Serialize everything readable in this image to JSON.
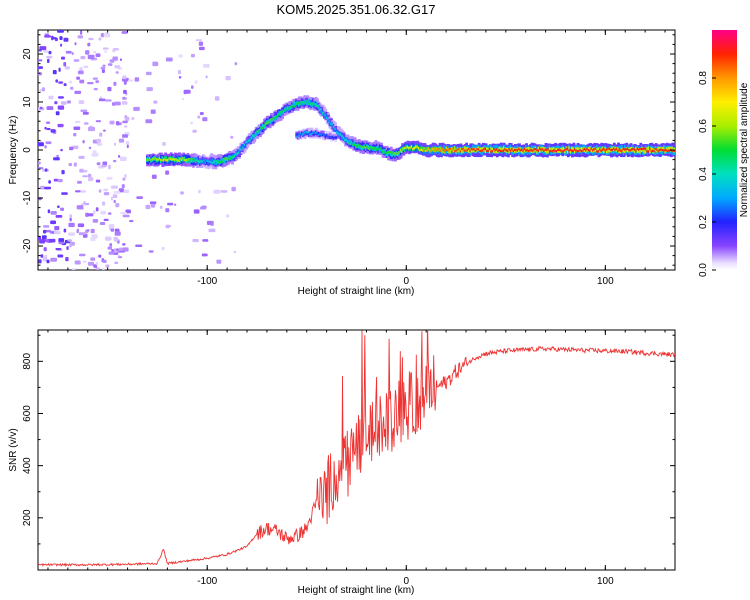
{
  "title": "KOM5.2025.351.06.32.G17",
  "chart_data": [
    {
      "type": "heatmap",
      "name": "spectrogram",
      "xlabel": "Height of straight line (km)",
      "ylabel": "Frequency (Hz)",
      "xlim": [
        -185,
        135
      ],
      "ylim": [
        -25,
        25
      ],
      "xticks": [
        -100,
        0,
        100
      ],
      "yticks": [
        -20,
        -10,
        0,
        10,
        20
      ],
      "xtick_labels": [
        "-100",
        "0",
        "100"
      ],
      "ytick_labels": [
        "-20",
        "-10",
        "0",
        "10",
        "20"
      ],
      "colorbar": {
        "label": "Normalized spectral amplitude",
        "range": [
          0,
          1
        ],
        "ticks": [
          0,
          0.2,
          0.4,
          0.6,
          0.8
        ],
        "tick_labels": [
          "0.0",
          "0.2",
          "0.4",
          "0.6",
          "0.8"
        ]
      },
      "ridge": {
        "x": [
          -130,
          -120,
          -110,
          -100,
          -95,
          -90,
          -85,
          -80,
          -75,
          -70,
          -65,
          -60,
          -55,
          -50,
          -45,
          -40,
          -35,
          -30,
          -25,
          -20,
          -15,
          -10,
          -5,
          0,
          5,
          10,
          15,
          20,
          40,
          60,
          80,
          100,
          120,
          135
        ],
        "y": [
          -2.0,
          -2.0,
          -2.0,
          -2.5,
          -2.5,
          -2.0,
          -1.0,
          1.5,
          3.5,
          5.5,
          7.0,
          8.5,
          9.5,
          10.0,
          9.5,
          7.0,
          4.0,
          2.0,
          1.0,
          0.5,
          0.5,
          -0.5,
          -1.0,
          0.5,
          0.5,
          0,
          0,
          0,
          0,
          0,
          0,
          0,
          0,
          0
        ],
        "amp": [
          0.55,
          0.65,
          0.6,
          0.3,
          0.45,
          0.55,
          0.4,
          0.35,
          0.45,
          0.55,
          0.5,
          0.45,
          0.5,
          0.45,
          0.45,
          0.35,
          0.35,
          0.4,
          0.5,
          0.55,
          0.5,
          0.5,
          0.55,
          0.65,
          0.7,
          0.75,
          0.8,
          0.85,
          0.9,
          0.9,
          0.92,
          0.9,
          0.9,
          0.9
        ]
      },
      "secondary_ridge": {
        "x": [
          -55,
          -50,
          -45,
          -40,
          -35
        ],
        "y": [
          3.0,
          3.5,
          3.5,
          3.0,
          2.5
        ],
        "amp": [
          0.3,
          0.35,
          0.3,
          0.25,
          0.2
        ]
      }
    },
    {
      "type": "line",
      "name": "snr",
      "xlabel": "Height of straight line (km)",
      "ylabel": "SNR (v/v)",
      "xlim": [
        -185,
        135
      ],
      "ylim": [
        0,
        920
      ],
      "xticks": [
        -100,
        0,
        100
      ],
      "yticks": [
        200,
        400,
        600,
        800
      ],
      "xtick_labels": [
        "-100",
        "0",
        "100"
      ],
      "ytick_labels": [
        "200",
        "400",
        "600",
        "800"
      ],
      "color": "#ee3333",
      "series": [
        {
          "name": "SNR",
          "x": [
            -185,
            -160,
            -140,
            -125,
            -122,
            -120,
            -110,
            -100,
            -90,
            -80,
            -75,
            -70,
            -65,
            -60,
            -55,
            -50,
            -45,
            -40,
            -35,
            -30,
            -25,
            -20,
            -15,
            -10,
            -5,
            0,
            5,
            10,
            15,
            20,
            25,
            30,
            35,
            40,
            45,
            50,
            60,
            70,
            80,
            90,
            100,
            110,
            120,
            135
          ],
          "y": [
            20,
            20,
            22,
            25,
            80,
            25,
            35,
            45,
            60,
            90,
            140,
            160,
            150,
            120,
            130,
            160,
            260,
            300,
            380,
            430,
            470,
            520,
            540,
            560,
            600,
            620,
            640,
            680,
            700,
            720,
            760,
            790,
            815,
            830,
            835,
            840,
            845,
            848,
            845,
            842,
            840,
            838,
            832,
            825
          ]
        }
      ]
    }
  ]
}
